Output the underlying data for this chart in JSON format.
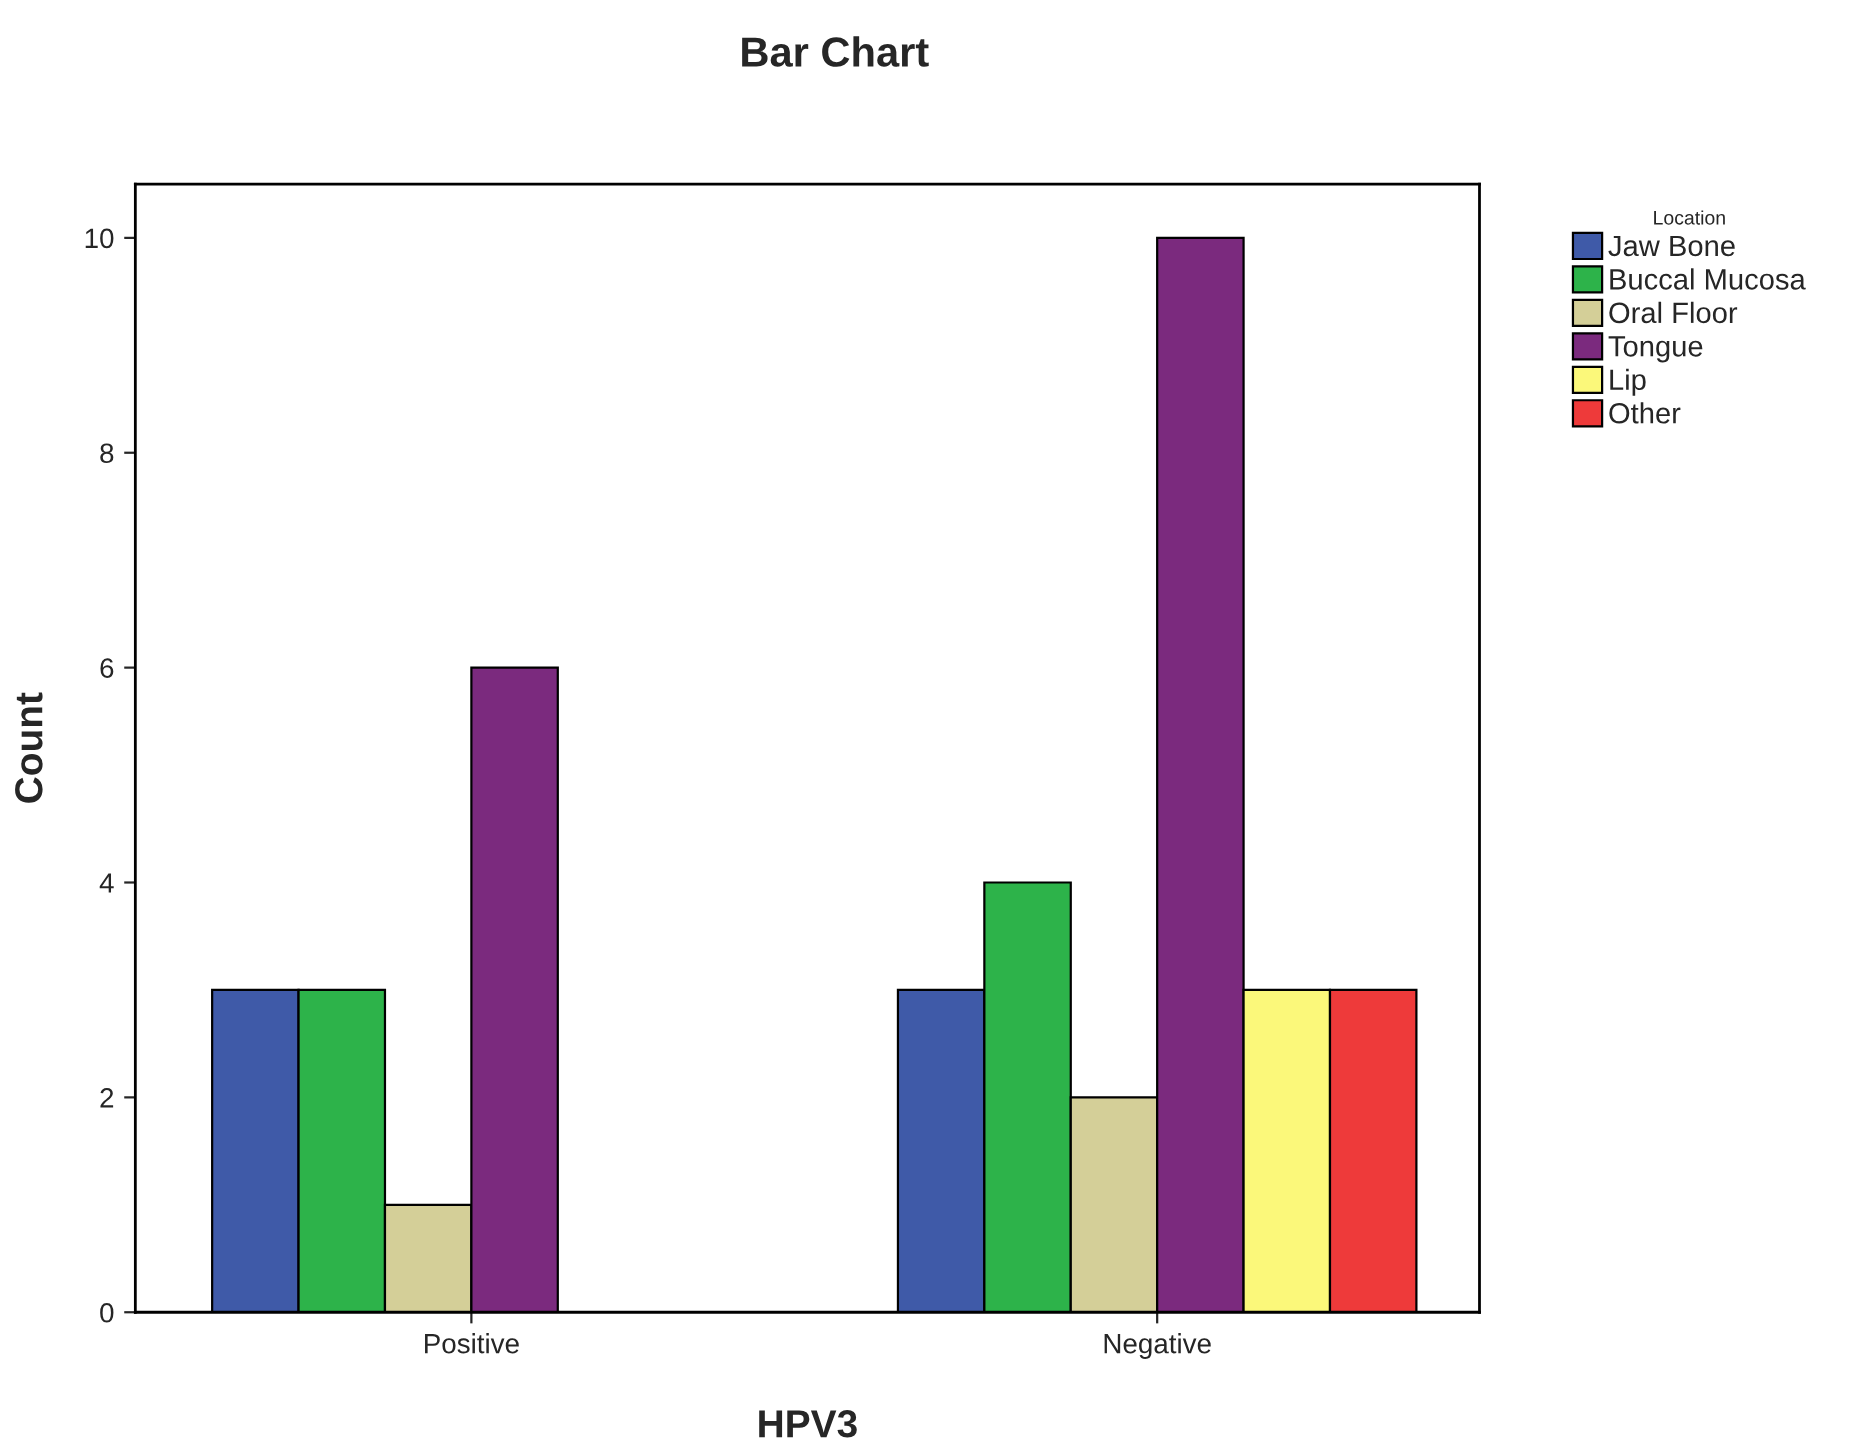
{
  "chart_data": {
    "type": "bar",
    "title": "Bar Chart",
    "xlabel": "HPV3",
    "ylabel": "Count",
    "legend_title": "Location",
    "categories": [
      "Positive",
      "Negative"
    ],
    "series": [
      {
        "name": "Jaw Bone",
        "color": "#3f5aa8",
        "values": [
          3,
          3
        ]
      },
      {
        "name": "Buccal Mucosa",
        "color": "#2db34a",
        "values": [
          3,
          4
        ]
      },
      {
        "name": "Oral Floor",
        "color": "#d4cf98",
        "values": [
          1,
          2
        ]
      },
      {
        "name": "Tongue",
        "color": "#7b2a7e",
        "values": [
          6,
          10
        ]
      },
      {
        "name": "Lip",
        "color": "#fbf87a",
        "values": [
          null,
          3
        ]
      },
      {
        "name": "Other",
        "color": "#ee3a3a",
        "values": [
          null,
          3
        ]
      }
    ],
    "ylim": [
      0,
      10.5
    ],
    "yticks": [
      0,
      2,
      4,
      6,
      8,
      10
    ],
    "grid": false,
    "legend": "top right"
  }
}
